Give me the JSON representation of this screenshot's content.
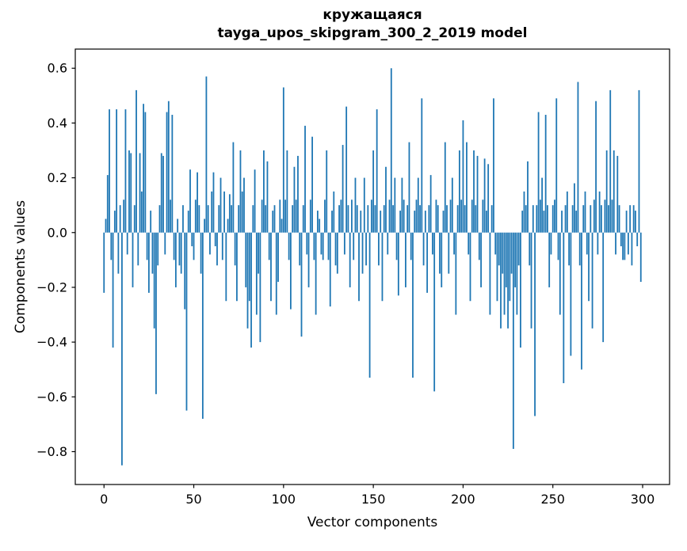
{
  "chart_data": {
    "type": "bar",
    "title": "кружащаяся",
    "subtitle": "tayga_upos_skipgram_300_2_2019 model",
    "xlabel": "Vector components",
    "ylabel": "Components values",
    "xlim": [
      -16,
      315
    ],
    "ylim": [
      -0.92,
      0.67
    ],
    "xticks": [
      0,
      50,
      100,
      150,
      200,
      250,
      300
    ],
    "yticks": [
      0.6,
      0.4,
      0.2,
      0.0,
      -0.2,
      -0.4,
      -0.6,
      -0.8
    ],
    "bar_color": "#1f77b4",
    "grid": false,
    "legend": "none",
    "n_components": 300,
    "values": [
      -0.22,
      0.05,
      0.21,
      0.45,
      -0.1,
      -0.42,
      0.08,
      0.45,
      -0.15,
      0.1,
      -0.85,
      0.12,
      0.45,
      -0.08,
      0.3,
      0.29,
      -0.2,
      0.1,
      0.52,
      -0.12,
      0.29,
      0.15,
      0.47,
      0.44,
      -0.1,
      -0.22,
      0.08,
      -0.15,
      -0.35,
      -0.59,
      -0.12,
      0.1,
      0.29,
      0.28,
      -0.08,
      0.44,
      0.48,
      0.12,
      0.43,
      -0.1,
      -0.2,
      0.05,
      -0.12,
      -0.15,
      0.1,
      -0.28,
      -0.65,
      0.08,
      0.23,
      -0.05,
      -0.1,
      0.12,
      0.22,
      0.1,
      -0.15,
      -0.68,
      0.05,
      0.57,
      0.1,
      -0.08,
      0.15,
      0.22,
      -0.05,
      -0.12,
      0.1,
      0.2,
      -0.1,
      0.15,
      -0.25,
      0.05,
      0.14,
      0.1,
      0.33,
      -0.12,
      -0.25,
      0.1,
      0.3,
      0.15,
      0.2,
      -0.2,
      -0.35,
      -0.25,
      -0.42,
      0.1,
      0.23,
      -0.3,
      -0.15,
      -0.4,
      0.12,
      0.3,
      0.1,
      0.26,
      -0.1,
      -0.25,
      0.08,
      0.1,
      -0.3,
      -0.18,
      0.12,
      0.05,
      0.53,
      0.12,
      0.3,
      -0.1,
      -0.28,
      0.1,
      0.24,
      0.12,
      0.28,
      -0.12,
      -0.38,
      0.1,
      0.39,
      -0.08,
      -0.2,
      0.12,
      0.35,
      -0.1,
      -0.3,
      0.08,
      0.05,
      -0.08,
      -0.1,
      0.12,
      0.3,
      -0.1,
      -0.27,
      0.08,
      0.15,
      -0.12,
      -0.15,
      0.1,
      0.12,
      0.32,
      -0.08,
      0.46,
      0.1,
      -0.2,
      0.12,
      -0.1,
      0.2,
      0.1,
      -0.25,
      0.08,
      -0.15,
      0.2,
      -0.12,
      0.1,
      -0.53,
      0.12,
      0.3,
      0.1,
      0.45,
      -0.12,
      0.08,
      -0.25,
      0.1,
      0.24,
      -0.08,
      0.12,
      0.6,
      0.1,
      0.2,
      -0.1,
      -0.23,
      0.08,
      0.2,
      0.12,
      -0.2,
      0.1,
      0.33,
      -0.1,
      -0.53,
      0.08,
      0.12,
      0.2,
      0.1,
      0.49,
      -0.12,
      0.08,
      -0.22,
      0.1,
      0.21,
      -0.08,
      -0.58,
      0.12,
      0.1,
      -0.15,
      -0.2,
      0.08,
      0.33,
      0.1,
      -0.15,
      0.12,
      0.2,
      -0.08,
      -0.3,
      0.1,
      0.3,
      0.12,
      0.41,
      0.1,
      0.33,
      -0.08,
      -0.25,
      0.12,
      0.3,
      0.1,
      0.28,
      -0.1,
      -0.2,
      0.12,
      0.27,
      0.08,
      0.25,
      -0.3,
      0.1,
      0.49,
      -0.08,
      -0.25,
      -0.12,
      -0.35,
      -0.15,
      -0.3,
      -0.2,
      -0.35,
      -0.25,
      -0.15,
      -0.79,
      -0.2,
      -0.3,
      -0.12,
      -0.42,
      0.08,
      0.15,
      0.1,
      0.26,
      -0.12,
      -0.35,
      0.1,
      -0.67,
      0.1,
      0.44,
      0.12,
      0.2,
      0.08,
      0.43,
      0.1,
      -0.2,
      -0.08,
      0.1,
      0.12,
      0.49,
      -0.1,
      -0.3,
      0.08,
      -0.55,
      0.1,
      0.15,
      -0.12,
      -0.45,
      0.1,
      0.18,
      0.08,
      0.55,
      -0.12,
      -0.5,
      0.1,
      0.15,
      -0.08,
      -0.25,
      0.1,
      -0.35,
      0.12,
      0.48,
      -0.08,
      0.15,
      0.1,
      -0.4,
      0.12,
      0.3,
      0.1,
      0.52,
      0.12,
      0.3,
      -0.08,
      0.28,
      0.1,
      -0.05,
      -0.1,
      -0.1,
      0.08,
      -0.08,
      0.1,
      -0.12,
      0.1,
      0.08,
      -0.05,
      0.52,
      -0.18
    ]
  }
}
